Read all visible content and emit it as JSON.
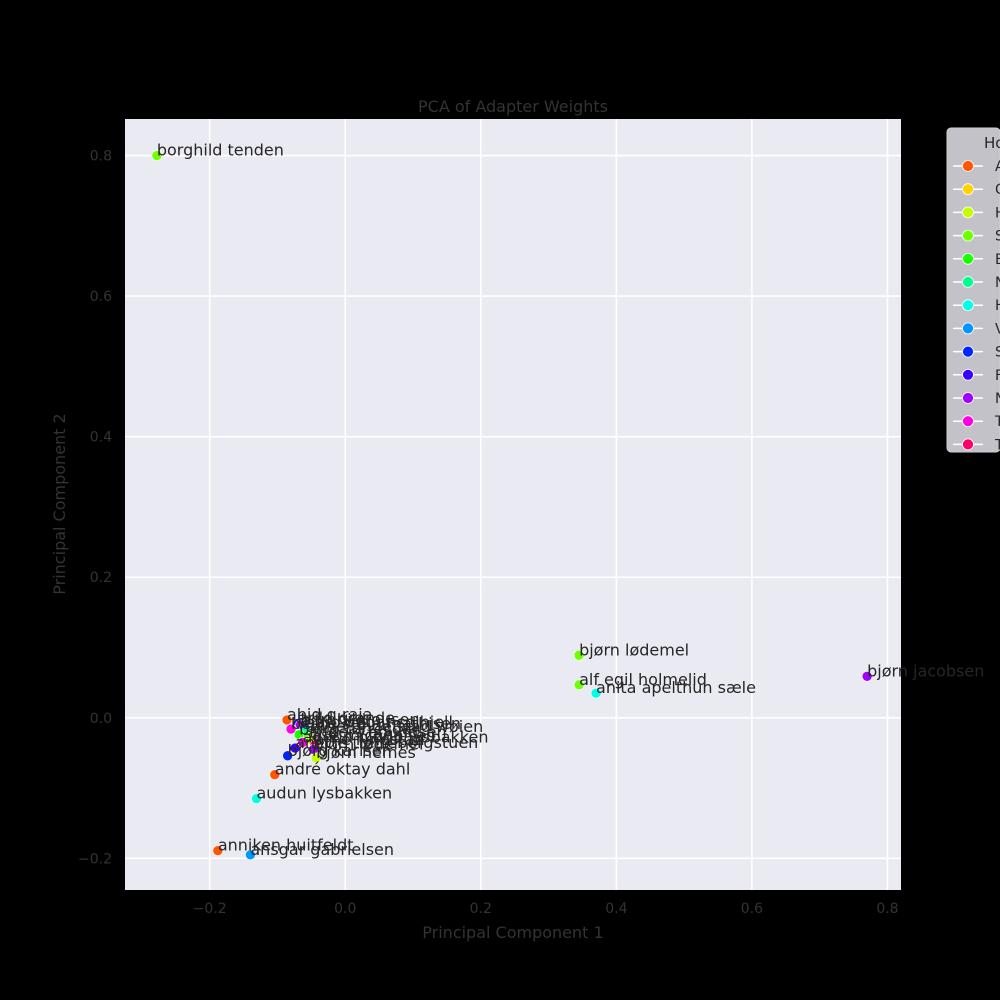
{
  "chart_data": {
    "type": "scatter",
    "title": "PCA of Adapter Weights",
    "xlabel": "Principal Component 1",
    "ylabel": "Principal Component 2",
    "xlim": [
      -0.325,
      0.82
    ],
    "ylim": [
      -0.245,
      0.852
    ],
    "xticks": [
      -0.2,
      0.0,
      0.2,
      0.4,
      0.6,
      0.8
    ],
    "yticks": [
      -0.2,
      0.0,
      0.2,
      0.4,
      0.6,
      0.8
    ],
    "xtick_labels": [
      "−0.2",
      "0.0",
      "0.2",
      "0.4",
      "0.6",
      "0.8"
    ],
    "ytick_labels": [
      "−0.2",
      "0.0",
      "0.2",
      "0.4",
      "0.6",
      "0.8"
    ],
    "grid": true,
    "legend": {
      "title": "Ho",
      "placement": "upper-right-outside",
      "entries": [
        {
          "label": "A",
          "color": "#ff5500"
        },
        {
          "label": "O",
          "color": "#ffd200"
        },
        {
          "label": "H",
          "color": "#c3ff00"
        },
        {
          "label": "S",
          "color": "#6fff00"
        },
        {
          "label": "E",
          "color": "#1aff00"
        },
        {
          "label": "N",
          "color": "#00ff8c"
        },
        {
          "label": "H",
          "color": "#00ffe5"
        },
        {
          "label": "V",
          "color": "#0096ff"
        },
        {
          "label": "S",
          "color": "#0024ff"
        },
        {
          "label": "F",
          "color": "#3c00ff"
        },
        {
          "label": "N",
          "color": "#a000ff"
        },
        {
          "label": "T",
          "color": "#ff00e6"
        },
        {
          "label": "T",
          "color": "#ff0066"
        }
      ]
    },
    "points": [
      {
        "label": "borghild tenden",
        "x": -0.278,
        "y": 0.8,
        "color": "#6fff00"
      },
      {
        "label": "bjørn lødemel",
        "x": 0.345,
        "y": 0.089,
        "color": "#6fff00"
      },
      {
        "label": "alf egil holmelid",
        "x": 0.345,
        "y": 0.047,
        "color": "#6fff00"
      },
      {
        "label": "anita apelthun sæle",
        "x": 0.37,
        "y": 0.035,
        "color": "#00ffe5"
      },
      {
        "label": "bjørn jacobsen",
        "x": 0.77,
        "y": 0.059,
        "color": "#a000ff"
      },
      {
        "label": "abid q raja",
        "x": -0.086,
        "y": -0.003,
        "color": "#ff5500"
      },
      {
        "label": "arild grande",
        "x": -0.07,
        "y": -0.008,
        "color": "#3c00ff"
      },
      {
        "label": "borghild ousen",
        "x": -0.066,
        "y": -0.01,
        "color": "#a000ff"
      },
      {
        "label": "bård vegar solhjell",
        "x": -0.06,
        "y": -0.014,
        "color": "#0024ff"
      },
      {
        "label": "bente stein mathisen",
        "x": -0.08,
        "y": -0.016,
        "color": "#ff00e6"
      },
      {
        "label": "anne tingelstad wøien",
        "x": -0.058,
        "y": -0.02,
        "color": "#00ff8c"
      },
      {
        "label": "bjørg tørresdal",
        "x": -0.068,
        "y": -0.024,
        "color": "#1aff00"
      },
      {
        "label": "anders anundsen",
        "x": -0.055,
        "y": -0.028,
        "color": "#6fff00"
      },
      {
        "label": "åse michaelsen",
        "x": -0.05,
        "y": -0.032,
        "color": "#c3ff00"
      },
      {
        "label": "audun bjørlo lysbakken",
        "x": -0.063,
        "y": -0.035,
        "color": "#ff00e6"
      },
      {
        "label": "arne lyngstad",
        "x": -0.045,
        "y": -0.039,
        "color": "#ff0066"
      },
      {
        "label": "anette trettebergstuen",
        "x": -0.074,
        "y": -0.043,
        "color": "#3c00ff"
      },
      {
        "label": "bjørn lødemel",
        "x": -0.047,
        "y": -0.045,
        "color": "#a000ff"
      },
      {
        "label": "bjørn hemes",
        "x": -0.043,
        "y": -0.057,
        "color": "#c3ff00"
      },
      {
        "label": "bjørg karlsen",
        "x": -0.085,
        "y": -0.054,
        "color": "#0024ff"
      },
      {
        "label": "andré oktay dahl",
        "x": -0.104,
        "y": -0.081,
        "color": "#ff5500"
      },
      {
        "label": "audun lysbakken",
        "x": -0.131,
        "y": -0.115,
        "color": "#00ffe5"
      },
      {
        "label": "anniken huitfeldt",
        "x": -0.188,
        "y": -0.189,
        "color": "#ff5500"
      },
      {
        "label": "ansgar gabrielsen",
        "x": -0.14,
        "y": -0.195,
        "color": "#0096ff"
      }
    ]
  }
}
